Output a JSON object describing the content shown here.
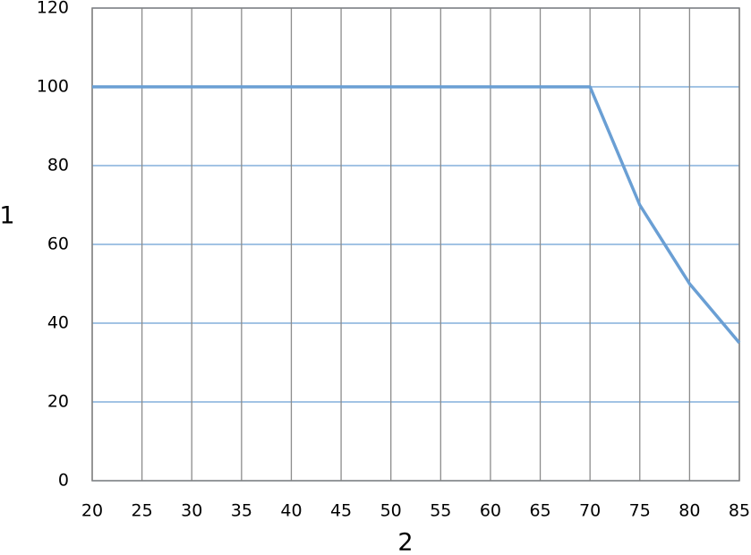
{
  "chart_data": {
    "type": "line",
    "x_label": "2",
    "y_label": "1",
    "x": [
      20,
      70,
      75,
      80,
      85
    ],
    "values": [
      100,
      100,
      70,
      50,
      35
    ],
    "color": "#6a9fd4",
    "xlim": [
      20,
      85
    ],
    "xticks": [
      20,
      25,
      30,
      35,
      40,
      45,
      50,
      55,
      60,
      65,
      70,
      75,
      80,
      85
    ],
    "ylim": [
      0,
      120
    ],
    "yticks": [
      0,
      20,
      40,
      60,
      80,
      100,
      120
    ],
    "grid": true
  }
}
